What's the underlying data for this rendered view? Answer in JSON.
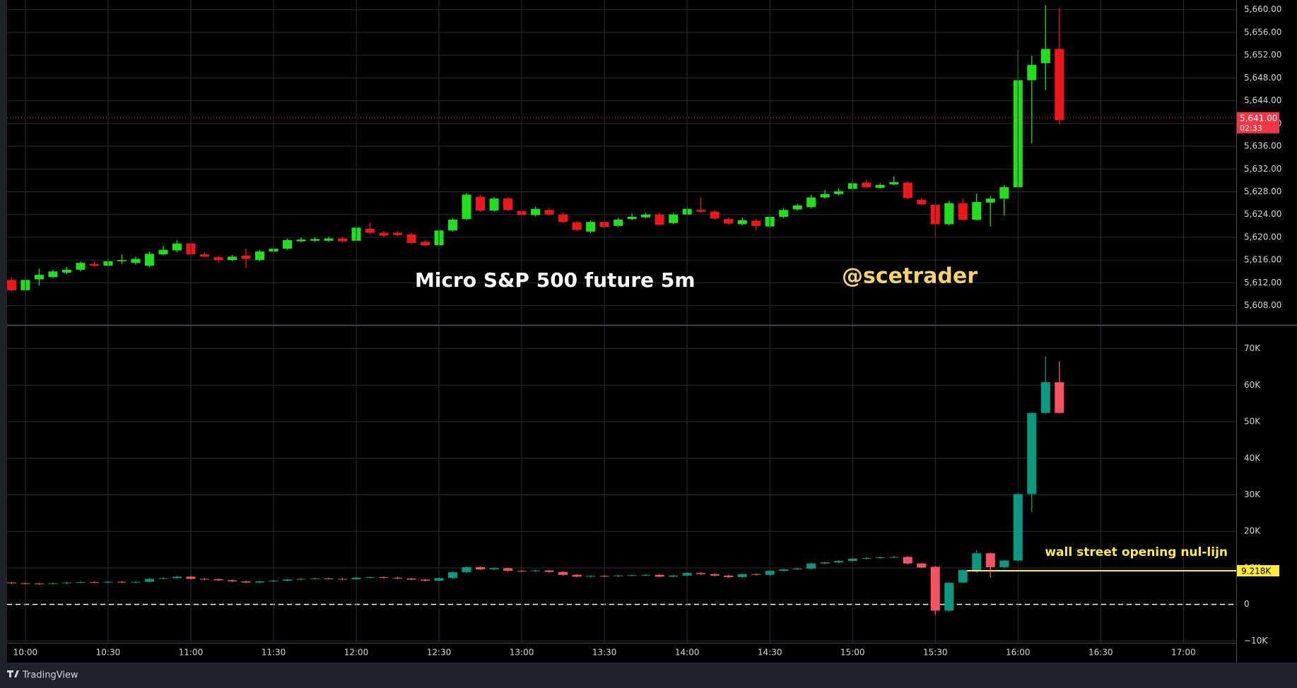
{
  "chart_data": [
    {
      "type": "candlestick",
      "title": "Micro S&P 500 future 5m",
      "annotation": "@scetrader",
      "up_color": "#1fe01a",
      "down_color": "#f2161b",
      "ylim": [
        5604.6,
        5661.7
      ],
      "yticks": [
        {
          "value": 5608,
          "label": "5,608.00"
        },
        {
          "value": 5612,
          "label": "5,612.00"
        },
        {
          "value": 5616,
          "label": "5,616.00"
        },
        {
          "value": 5620,
          "label": "5,620.00"
        },
        {
          "value": 5624,
          "label": "5,624.00"
        },
        {
          "value": 5628,
          "label": "5,628.00"
        },
        {
          "value": 5632,
          "label": "5,632.00"
        },
        {
          "value": 5636,
          "label": "5,636.00"
        },
        {
          "value": 5640,
          "label": "5,640.00"
        },
        {
          "value": 5644,
          "label": "5,644.00"
        },
        {
          "value": 5648,
          "label": "5,648.00"
        },
        {
          "value": 5652,
          "label": "5,652.00"
        },
        {
          "value": 5656,
          "label": "5,656.00"
        },
        {
          "value": 5660,
          "label": "5,660.00"
        }
      ],
      "grid": true,
      "current_price": {
        "value": 5641,
        "label": "5,641.00",
        "countdown": "02:33",
        "color": "#f23645"
      },
      "open": [
        5612.5,
        5610.7,
        5612.6,
        5613,
        5613.8,
        5614.3,
        5615.3,
        5615,
        5615.8,
        5615.5,
        5615,
        5617,
        5617.7,
        5618.9,
        5617,
        5616.5,
        5616,
        5616.8,
        5616,
        5617.5,
        5618,
        5619.3,
        5619.4,
        5619.4,
        5619.8,
        5619.4,
        5621.5,
        5620.8,
        5620.8,
        5620.5,
        5619.2,
        5618.6,
        5621.2,
        5623.2,
        5627.1,
        5624.7,
        5626.8,
        5624.6,
        5623.9,
        5624.8,
        5624,
        5622.6,
        5621,
        5622.7,
        5622,
        5623.2,
        5623.5,
        5624,
        5622.5,
        5624,
        5624.8,
        5624.5,
        5623.2,
        5622.3,
        5622.9,
        5621.9,
        5623.6,
        5624.9,
        5625.3,
        5627,
        5627.6,
        5628.5,
        5629.6,
        5628.7,
        5629.3,
        5629.6,
        5626.6,
        5625.7,
        5622.3,
        5626,
        5623.1,
        5626.1,
        5626.8,
        5628.8,
        5647.6,
        5650.6,
        5653.1,
        null,
        null,
        null,
        null,
        null,
        null,
        null,
        null,
        null,
        null,
        null
      ],
      "high": [
        5613,
        5613,
        5614.5,
        5614.3,
        5614.8,
        5615.8,
        5615.8,
        5616.3,
        5617,
        5616.6,
        5617.5,
        5618.5,
        5619.5,
        5619.3,
        5617.3,
        5616.8,
        5616.9,
        5618,
        5617.8,
        5618.3,
        5619.8,
        5620,
        5620,
        5620.1,
        5620.1,
        5622,
        5622.6,
        5621.1,
        5621.1,
        5620.8,
        5619.5,
        5621.5,
        5623.4,
        5627.8,
        5627.4,
        5627.1,
        5627.1,
        5624.9,
        5625.4,
        5625.1,
        5624.3,
        5622.9,
        5623,
        5623,
        5623.4,
        5624.2,
        5624.3,
        5624.3,
        5624.3,
        5625.5,
        5627,
        5624.8,
        5623.5,
        5623.5,
        5623.2,
        5623.9,
        5625.1,
        5625.9,
        5627.5,
        5628.3,
        5628.6,
        5630,
        5630.1,
        5629.5,
        5630.7,
        5629.9,
        5626.9,
        5626,
        5626.4,
        5626.8,
        5627.7,
        5627.3,
        5629.2,
        5652.9,
        5651.9,
        5660.8,
        5660.3,
        null,
        null,
        null,
        null,
        null,
        null,
        null,
        null,
        null,
        null,
        null
      ],
      "low": [
        5610.5,
        5610.5,
        5611.5,
        5612.8,
        5613.5,
        5614,
        5614.8,
        5614.8,
        5615.3,
        5615.2,
        5614.7,
        5616.8,
        5617.4,
        5616.8,
        5616.5,
        5615.5,
        5615.8,
        5614.6,
        5615.8,
        5617.3,
        5617.8,
        5619.1,
        5619.2,
        5619.2,
        5619.1,
        5619.2,
        5620.5,
        5620,
        5620.2,
        5618.8,
        5618.4,
        5618.4,
        5621,
        5623,
        5624.5,
        5624.5,
        5624.6,
        5623.7,
        5623.7,
        5623.8,
        5622.5,
        5621.1,
        5620.8,
        5621.6,
        5621.8,
        5623,
        5623.3,
        5622,
        5622.3,
        5623.8,
        5624.3,
        5623.1,
        5622.2,
        5622.1,
        5621.2,
        5621.7,
        5623.4,
        5624.7,
        5625.1,
        5626.8,
        5627.4,
        5628.3,
        5628.6,
        5628.5,
        5629.1,
        5626.7,
        5625.6,
        5620.1,
        5622.1,
        5622.9,
        5622.9,
        5621.9,
        5623.8,
        5628.6,
        5636.5,
        5645.9,
        5639.8,
        null,
        null,
        null,
        null,
        null,
        null,
        null,
        null,
        null,
        null,
        null
      ],
      "close": [
        5610.7,
        5612.5,
        5613.4,
        5614,
        5614.3,
        5615.5,
        5615,
        5615.8,
        5616,
        5616.2,
        5617.1,
        5617.8,
        5618.9,
        5617,
        5616.6,
        5616,
        5616.6,
        5616.2,
        5617.5,
        5618,
        5619.5,
        5619.6,
        5619.7,
        5619.8,
        5619.3,
        5621.7,
        5620.8,
        5620.3,
        5620.4,
        5619,
        5618.6,
        5621.2,
        5623.1,
        5627.5,
        5624.7,
        5626.8,
        5624.8,
        5623.9,
        5625,
        5624,
        5622.7,
        5621.3,
        5622.7,
        5621.8,
        5623.1,
        5623.6,
        5624,
        5622.2,
        5624,
        5625,
        5624.5,
        5623.3,
        5622.4,
        5623,
        5622,
        5623.6,
        5624.8,
        5625.6,
        5627,
        5627.6,
        5628.1,
        5629.5,
        5628.8,
        5629.2,
        5629.7,
        5626.9,
        5625.8,
        5622.3,
        5626,
        5623.1,
        5626.2,
        5626.8,
        5628.8,
        5647.6,
        5650.3,
        5653.1,
        5640.6,
        null,
        null,
        null,
        null,
        null,
        null,
        null,
        null,
        null,
        null,
        null
      ]
    },
    {
      "type": "candlestick",
      "annotation": "wall street opening nul-lijn",
      "up_color": "#089981",
      "down_color": "#f7525f",
      "ylim": [
        -10500,
        76300
      ],
      "yticks": [
        {
          "value": -10000,
          "label": "−10K"
        },
        0,
        {
          "value": 10000,
          "label": "10K"
        },
        {
          "value": 20000,
          "label": "20K"
        },
        {
          "value": 30000,
          "label": "30K"
        },
        {
          "value": 40000,
          "label": "40K"
        },
        {
          "value": 50000,
          "label": "50K"
        },
        {
          "value": 60000,
          "label": "60K"
        },
        {
          "value": 70000,
          "label": "70K"
        }
      ],
      "grid": true,
      "zero_line": true,
      "level": {
        "value": 9218,
        "label": "9.218K",
        "color": "#ffeb3b"
      },
      "categories": [
        null,
        "10:00",
        null,
        null,
        null,
        null,
        null,
        "10:30",
        null,
        null,
        null,
        null,
        null,
        "11:00",
        null,
        null,
        null,
        null,
        null,
        "11:30",
        null,
        null,
        null,
        null,
        null,
        "12:00",
        null,
        null,
        null,
        null,
        null,
        "12:30",
        null,
        null,
        null,
        null,
        null,
        "13:00",
        null,
        null,
        null,
        null,
        null,
        "13:30",
        null,
        null,
        null,
        null,
        null,
        "14:00",
        null,
        null,
        null,
        null,
        null,
        "14:30",
        null,
        null,
        null,
        null,
        null,
        "15:00",
        null,
        null,
        null,
        null,
        null,
        "15:30",
        null,
        null,
        null,
        null,
        null,
        "16:00",
        null,
        null,
        null,
        null,
        null,
        "16:30",
        null,
        null,
        null,
        null,
        null,
        "17:00",
        null,
        null
      ],
      "open": [
        6000,
        5800,
        5700,
        5600,
        5800,
        6000,
        6100,
        6000,
        6200,
        6000,
        6200,
        7000,
        7200,
        7600,
        7000,
        6900,
        6600,
        6300,
        6000,
        6300,
        6500,
        6800,
        7000,
        7100,
        7000,
        6900,
        7300,
        7500,
        7300,
        7100,
        6800,
        6500,
        7200,
        8800,
        10200,
        9600,
        9900,
        9200,
        9100,
        9300,
        8900,
        8100,
        7600,
        7800,
        7700,
        7900,
        8000,
        8100,
        7600,
        7900,
        8600,
        8300,
        7900,
        7500,
        8300,
        8100,
        9200,
        9600,
        9800,
        11200,
        11500,
        11900,
        12500,
        12700,
        12900,
        13000,
        11200,
        10300,
        -1700,
        6000,
        9400,
        14000,
        10200,
        12000,
        30200,
        52400,
        60800,
        null,
        null,
        null,
        null,
        null,
        null,
        null,
        null,
        null,
        null,
        null
      ],
      "high": [
        6200,
        6000,
        5900,
        6000,
        6200,
        6300,
        6300,
        6400,
        6400,
        6400,
        7200,
        7400,
        7800,
        7800,
        7200,
        7100,
        6800,
        6500,
        6500,
        6700,
        7000,
        7200,
        7300,
        7300,
        7200,
        7500,
        7700,
        7700,
        7500,
        7300,
        7000,
        7400,
        9000,
        10400,
        10400,
        10100,
        10100,
        9400,
        9500,
        9500,
        9100,
        8300,
        8000,
        8000,
        8100,
        8200,
        8300,
        8300,
        8100,
        8800,
        8800,
        8500,
        8100,
        8500,
        8500,
        9400,
        9800,
        10000,
        11400,
        11700,
        12100,
        12700,
        12900,
        13100,
        13200,
        13200,
        11400,
        10500,
        6100,
        9600,
        14900,
        14200,
        12200,
        30400,
        52600,
        67900,
        66600,
        null,
        null,
        null,
        null,
        null,
        null,
        null,
        null,
        null,
        null,
        null
      ],
      "low": [
        5600,
        5500,
        5400,
        5400,
        5600,
        5800,
        5800,
        5800,
        5800,
        5800,
        6000,
        6800,
        7000,
        6800,
        6700,
        6400,
        6100,
        5800,
        5800,
        6100,
        6300,
        6600,
        6800,
        6800,
        6700,
        6700,
        7100,
        7100,
        6900,
        6600,
        6300,
        6300,
        7000,
        8600,
        9400,
        9400,
        9000,
        8900,
        8900,
        8700,
        7900,
        7400,
        7400,
        7500,
        7500,
        7700,
        7800,
        7400,
        7400,
        7700,
        8100,
        7700,
        7300,
        7300,
        7900,
        7900,
        9000,
        9400,
        9600,
        11000,
        11300,
        11700,
        12300,
        12500,
        12700,
        11000,
        9900,
        -2900,
        -2000,
        5800,
        8700,
        7300,
        10000,
        11800,
        25300,
        52200,
        52200,
        null,
        null,
        null,
        null,
        null,
        null,
        null,
        null,
        null,
        null,
        null
      ],
      "close": [
        5800,
        5700,
        5600,
        5800,
        6000,
        6100,
        6000,
        6200,
        6000,
        6200,
        7000,
        7200,
        7600,
        7000,
        6900,
        6600,
        6300,
        6000,
        6300,
        6500,
        6800,
        7000,
        7100,
        7000,
        6900,
        7300,
        7500,
        7300,
        7100,
        6800,
        6500,
        7200,
        8800,
        10200,
        9600,
        9900,
        9200,
        9100,
        9300,
        8900,
        8100,
        7600,
        7800,
        7700,
        7900,
        8000,
        8100,
        7600,
        7900,
        8600,
        8300,
        7900,
        7500,
        8300,
        8100,
        9200,
        9600,
        9800,
        11200,
        11500,
        11900,
        12500,
        12700,
        12900,
        13000,
        11200,
        10100,
        -1700,
        5900,
        9400,
        14000,
        10200,
        12000,
        30200,
        52400,
        60800,
        52400,
        null,
        null,
        null,
        null,
        null,
        null,
        null,
        null,
        null,
        null,
        null
      ]
    }
  ],
  "footer": {
    "brand": "TradingView"
  }
}
